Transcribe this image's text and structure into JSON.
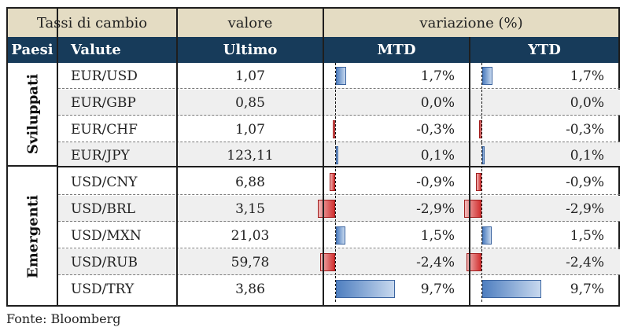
{
  "header": {
    "group1": "Tassi di cambio",
    "group2": "valore",
    "group3": "variazione (%)",
    "col_paesi": "Paesi",
    "col_valute": "Valute",
    "col_ultimo": "Ultimo",
    "col_mtd": "MTD",
    "col_ytd": "YTD"
  },
  "groups": [
    {
      "label": "Sviluppati",
      "rows": 4
    },
    {
      "label": "Emergenti",
      "rows": 5
    }
  ],
  "rows": [
    {
      "valuta": "EUR/USD",
      "ultimo": "1,07",
      "mtd": "1,7%",
      "ytd": "1,7%",
      "mtd_value": 1.7,
      "ytd_value": 1.7
    },
    {
      "valuta": "EUR/GBP",
      "ultimo": "0,85",
      "mtd": "0,0%",
      "ytd": "0,0%",
      "mtd_value": 0.0,
      "ytd_value": 0.0
    },
    {
      "valuta": "EUR/CHF",
      "ultimo": "1,07",
      "mtd": "-0,3%",
      "ytd": "-0,3%",
      "mtd_value": -0.3,
      "ytd_value": -0.3
    },
    {
      "valuta": "EUR/JPY",
      "ultimo": "123,11",
      "mtd": "0,1%",
      "ytd": "0,1%",
      "mtd_value": 0.1,
      "ytd_value": 0.1
    },
    {
      "valuta": "USD/CNY",
      "ultimo": "6,88",
      "mtd": "-0,9%",
      "ytd": "-0,9%",
      "mtd_value": -0.9,
      "ytd_value": -0.9
    },
    {
      "valuta": "USD/BRL",
      "ultimo": "3,15",
      "mtd": "-2,9%",
      "ytd": "-2,9%",
      "mtd_value": -2.9,
      "ytd_value": -2.9
    },
    {
      "valuta": "USD/MXN",
      "ultimo": "21,03",
      "mtd": "1,5%",
      "ytd": "1,5%",
      "mtd_value": 1.5,
      "ytd_value": 1.5
    },
    {
      "valuta": "USD/RUB",
      "ultimo": "59,78",
      "mtd": "-2,4%",
      "ytd": "-2,4%",
      "mtd_value": -2.4,
      "ytd_value": -2.4
    },
    {
      "valuta": "USD/TRY",
      "ultimo": "3,86",
      "mtd": "9,7%",
      "ytd": "9,7%",
      "mtd_value": 9.7,
      "ytd_value": 9.7
    }
  ],
  "source": "Fonte: Bloomberg",
  "colors": {
    "header_light": "#e4dcc3",
    "header_dark": "#173b5a",
    "positive_bar": "#4f7fc0",
    "negative_bar": "#d13030"
  }
}
